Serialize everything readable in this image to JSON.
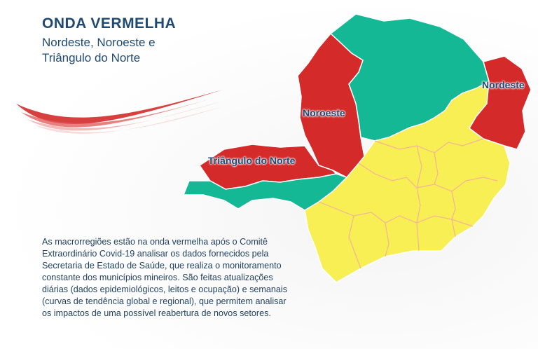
{
  "header": {
    "title": "ONDA VERMELHA",
    "subtitle_line1": "Nordeste, Noroeste e",
    "subtitle_line2": "Triângulo do Norte"
  },
  "map": {
    "regions": [
      {
        "label": "Noroeste",
        "wave": "vermelha"
      },
      {
        "label": "Nordeste",
        "wave": "vermelha"
      },
      {
        "label": "Triângulo do Norte",
        "wave": "vermelha"
      }
    ]
  },
  "description": "As macrorregiões estão na onda vermelha após o Comitê Extraordinário Covid-19 analisar os dados fornecidos pela Secretaria de Estado de Saúde, que realiza o monitoramento constante dos municípios mineiros. São feitas atualizações diárias (dados epidemiológicos, leitos e ocupação) e semanais (curvas de tendência global e regional), que permitem analisar os impactos de uma possível reabertura de novos setores.",
  "colors": {
    "title": "#1f4a73",
    "red_wave": "#d42a2a",
    "green_wave": "#14b894",
    "yellow_wave": "#f7ef54",
    "border_yellow": "#f4b49a",
    "label": "#1f4a73"
  }
}
